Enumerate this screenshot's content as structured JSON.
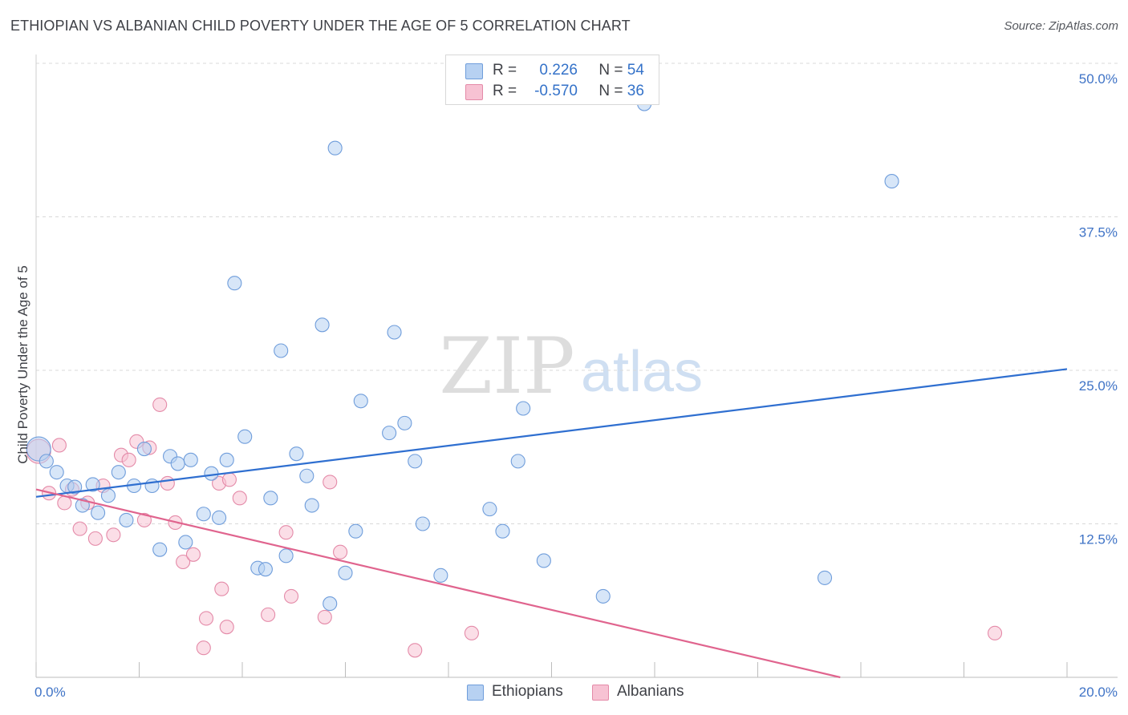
{
  "header": {
    "title": "ETHIOPIAN VS ALBANIAN CHILD POVERTY UNDER THE AGE OF 5 CORRELATION CHART",
    "source": "Source: ZipAtlas.com"
  },
  "watermark": {
    "zip": "ZIP",
    "atlas": "atlas"
  },
  "legend": {
    "r_label": "R =",
    "n_label": "N =",
    "ethiopians": {
      "r": "0.226",
      "n": "54"
    },
    "albanians": {
      "r": "-0.570",
      "n": "36"
    }
  },
  "colors": {
    "ethiopians_fill": "#b7d1f2",
    "ethiopians_stroke": "#6f9ddb",
    "ethiopians_line": "#2f6fd0",
    "albanians_fill": "#f7c2d3",
    "albanians_stroke": "#e48aa8",
    "albanians_line": "#e0648e",
    "tick_label": "#3f73c6",
    "grid": "#d9d9d9"
  },
  "chart_data": {
    "type": "scatter",
    "title": "ETHIOPIAN VS ALBANIAN CHILD POVERTY UNDER THE AGE OF 5 CORRELATION CHART",
    "xlabel": "",
    "ylabel": "Child Poverty Under the Age of 5",
    "xlim": [
      0,
      20
    ],
    "ylim": [
      0,
      50
    ],
    "x_tick_labels": [
      "0.0%",
      "20.0%"
    ],
    "y_ticks": [
      12.5,
      25,
      37.5,
      50
    ],
    "y_tick_labels": [
      "12.5%",
      "25.0%",
      "37.5%",
      "50.0%"
    ],
    "grid": "horizontal dashed",
    "legend_position": "top-center",
    "series": [
      {
        "name": "Ethiopians",
        "r": 0.226,
        "n": 54,
        "trend": {
          "x": [
            0,
            20
          ],
          "y": [
            14.7,
            25.1
          ]
        },
        "points": [
          [
            0.05,
            18.6
          ],
          [
            0.2,
            17.6
          ],
          [
            0.4,
            16.7
          ],
          [
            0.6,
            15.6
          ],
          [
            0.75,
            15.5
          ],
          [
            0.9,
            14.0
          ],
          [
            1.1,
            15.7
          ],
          [
            1.2,
            13.4
          ],
          [
            1.4,
            14.8
          ],
          [
            1.6,
            16.7
          ],
          [
            1.75,
            12.8
          ],
          [
            1.9,
            15.6
          ],
          [
            2.1,
            18.6
          ],
          [
            2.25,
            15.6
          ],
          [
            2.4,
            10.4
          ],
          [
            2.6,
            18.0
          ],
          [
            2.75,
            17.4
          ],
          [
            2.9,
            11.0
          ],
          [
            3.0,
            17.7
          ],
          [
            3.25,
            13.3
          ],
          [
            3.4,
            16.6
          ],
          [
            3.55,
            13.0
          ],
          [
            3.7,
            17.7
          ],
          [
            3.85,
            32.1
          ],
          [
            4.05,
            19.6
          ],
          [
            4.3,
            8.9
          ],
          [
            4.45,
            8.8
          ],
          [
            4.55,
            14.6
          ],
          [
            4.75,
            26.6
          ],
          [
            4.85,
            9.9
          ],
          [
            5.05,
            18.2
          ],
          [
            5.25,
            16.4
          ],
          [
            5.35,
            14.0
          ],
          [
            5.55,
            28.7
          ],
          [
            5.7,
            6.0
          ],
          [
            5.8,
            43.1
          ],
          [
            6.0,
            8.5
          ],
          [
            6.2,
            11.9
          ],
          [
            6.3,
            22.5
          ],
          [
            6.85,
            19.9
          ],
          [
            6.95,
            28.1
          ],
          [
            7.15,
            20.7
          ],
          [
            7.35,
            17.6
          ],
          [
            7.5,
            12.5
          ],
          [
            7.85,
            8.3
          ],
          [
            8.8,
            13.7
          ],
          [
            9.05,
            11.9
          ],
          [
            9.35,
            17.6
          ],
          [
            9.45,
            21.9
          ],
          [
            9.85,
            9.5
          ],
          [
            11.0,
            6.6
          ],
          [
            11.8,
            46.7
          ],
          [
            15.3,
            8.1
          ],
          [
            16.6,
            40.4
          ]
        ]
      },
      {
        "name": "Albanians",
        "r": -0.57,
        "n": 36,
        "trend": {
          "x": [
            0,
            15.6
          ],
          "y": [
            15.3,
            0
          ]
        },
        "points": [
          [
            0.05,
            18.4
          ],
          [
            0.25,
            15.0
          ],
          [
            0.45,
            18.9
          ],
          [
            0.55,
            14.2
          ],
          [
            0.7,
            15.3
          ],
          [
            0.85,
            12.1
          ],
          [
            1.0,
            14.2
          ],
          [
            1.15,
            11.3
          ],
          [
            1.3,
            15.6
          ],
          [
            1.5,
            11.6
          ],
          [
            1.65,
            18.1
          ],
          [
            1.8,
            17.7
          ],
          [
            1.95,
            19.2
          ],
          [
            2.1,
            12.8
          ],
          [
            2.2,
            18.7
          ],
          [
            2.4,
            22.2
          ],
          [
            2.55,
            15.8
          ],
          [
            2.7,
            12.6
          ],
          [
            2.85,
            9.4
          ],
          [
            3.05,
            10.0
          ],
          [
            3.25,
            2.4
          ],
          [
            3.3,
            4.8
          ],
          [
            3.55,
            15.8
          ],
          [
            3.6,
            7.2
          ],
          [
            3.7,
            4.1
          ],
          [
            3.75,
            16.1
          ],
          [
            3.95,
            14.6
          ],
          [
            4.5,
            5.1
          ],
          [
            4.85,
            11.8
          ],
          [
            4.95,
            6.6
          ],
          [
            5.6,
            4.9
          ],
          [
            5.7,
            15.9
          ],
          [
            5.9,
            10.2
          ],
          [
            7.35,
            2.2
          ],
          [
            8.45,
            3.6
          ],
          [
            18.6,
            3.6
          ]
        ]
      }
    ]
  }
}
